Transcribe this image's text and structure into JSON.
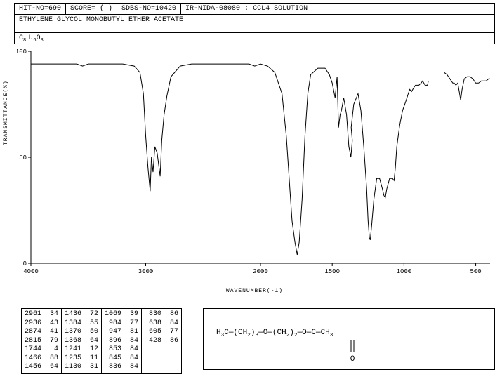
{
  "header": {
    "hit_no": "HIT-NO=690",
    "score": "SCORE=  (  )",
    "sdbs_no": "SDBS-NO=10420",
    "ir_info": "IR-NIDA-08080 : CCL4 SOLUTION"
  },
  "compound_name": "ETHYLENE GLYCOL MONOBUTYL ETHER ACETATE",
  "formula_html": "C<sub>8</sub>H<sub>16</sub>O<sub>3</sub>",
  "chart": {
    "type": "line",
    "ylabel": "TRANSMITTANCE(%)",
    "xlabel": "WAVENUMBER(-1)",
    "xlim": [
      4000,
      400
    ],
    "ylim": [
      0,
      100
    ],
    "yticks": [
      0,
      50,
      100
    ],
    "xticks": [
      4000,
      3000,
      2000,
      1500,
      1000,
      500
    ],
    "plot_bg": "#ffffff",
    "line_color": "#000000",
    "line_width": 1,
    "spectrum": [
      [
        4000,
        94
      ],
      [
        3800,
        94
      ],
      [
        3600,
        94
      ],
      [
        3550,
        93
      ],
      [
        3500,
        94
      ],
      [
        3400,
        94
      ],
      [
        3200,
        94
      ],
      [
        3100,
        93
      ],
      [
        3050,
        90
      ],
      [
        3020,
        80
      ],
      [
        3000,
        60
      ],
      [
        2980,
        45
      ],
      [
        2961,
        34
      ],
      [
        2950,
        50
      ],
      [
        2936,
        43
      ],
      [
        2920,
        55
      ],
      [
        2900,
        52
      ],
      [
        2874,
        41
      ],
      [
        2860,
        58
      ],
      [
        2840,
        70
      ],
      [
        2815,
        79
      ],
      [
        2780,
        88
      ],
      [
        2700,
        93
      ],
      [
        2600,
        94
      ],
      [
        2500,
        94
      ],
      [
        2400,
        94
      ],
      [
        2300,
        94
      ],
      [
        2200,
        94
      ],
      [
        2100,
        94
      ],
      [
        2050,
        93
      ],
      [
        2000,
        94
      ],
      [
        1950,
        93
      ],
      [
        1900,
        90
      ],
      [
        1850,
        80
      ],
      [
        1820,
        60
      ],
      [
        1800,
        40
      ],
      [
        1780,
        20
      ],
      [
        1760,
        10
      ],
      [
        1744,
        4
      ],
      [
        1730,
        10
      ],
      [
        1710,
        30
      ],
      [
        1690,
        60
      ],
      [
        1670,
        80
      ],
      [
        1650,
        89
      ],
      [
        1600,
        92
      ],
      [
        1550,
        92
      ],
      [
        1520,
        89
      ],
      [
        1500,
        85
      ],
      [
        1480,
        78
      ],
      [
        1466,
        88
      ],
      [
        1456,
        64
      ],
      [
        1445,
        70
      ],
      [
        1436,
        72
      ],
      [
        1420,
        78
      ],
      [
        1400,
        70
      ],
      [
        1384,
        55
      ],
      [
        1375,
        52
      ],
      [
        1370,
        50
      ],
      [
        1360,
        58
      ],
      [
        1368,
        64
      ],
      [
        1350,
        75
      ],
      [
        1320,
        80
      ],
      [
        1300,
        72
      ],
      [
        1280,
        55
      ],
      [
        1260,
        35
      ],
      [
        1250,
        20
      ],
      [
        1241,
        12
      ],
      [
        1235,
        11
      ],
      [
        1225,
        18
      ],
      [
        1210,
        30
      ],
      [
        1190,
        40
      ],
      [
        1170,
        40
      ],
      [
        1150,
        35
      ],
      [
        1140,
        32
      ],
      [
        1130,
        31
      ],
      [
        1120,
        35
      ],
      [
        1100,
        40
      ],
      [
        1080,
        40
      ],
      [
        1069,
        39
      ],
      [
        1060,
        45
      ],
      [
        1050,
        55
      ],
      [
        1030,
        65
      ],
      [
        1010,
        72
      ],
      [
        984,
        77
      ],
      [
        970,
        80
      ],
      [
        960,
        82
      ],
      [
        947,
        81
      ],
      [
        930,
        83
      ],
      [
        920,
        84
      ],
      [
        910,
        84
      ],
      [
        896,
        84
      ],
      [
        880,
        85
      ],
      [
        870,
        86
      ],
      [
        853,
        84
      ],
      [
        845,
        84
      ],
      [
        836,
        84
      ],
      [
        830,
        86
      ],
      [
        820,
        90
      ],
      [
        810,
        92
      ],
      [
        800,
        92
      ],
      [
        790,
        90
      ],
      [
        780,
        89
      ],
      [
        770,
        90
      ],
      [
        760,
        91
      ],
      [
        750,
        92
      ],
      [
        740,
        91
      ],
      [
        720,
        90
      ],
      [
        700,
        89
      ],
      [
        680,
        87
      ],
      [
        660,
        85
      ],
      [
        650,
        85
      ],
      [
        638,
        84
      ],
      [
        625,
        85
      ],
      [
        605,
        77
      ],
      [
        595,
        82
      ],
      [
        580,
        87
      ],
      [
        560,
        88
      ],
      [
        540,
        88
      ],
      [
        520,
        87
      ],
      [
        500,
        85
      ],
      [
        480,
        85
      ],
      [
        460,
        86
      ],
      [
        440,
        86
      ],
      [
        428,
        86
      ],
      [
        410,
        87
      ],
      [
        400,
        87
      ]
    ]
  },
  "peak_table": {
    "columns": [
      [
        [
          2961,
          34
        ],
        [
          2936,
          43
        ],
        [
          2874,
          41
        ],
        [
          2815,
          79
        ],
        [
          1744,
          4
        ],
        [
          1466,
          88
        ],
        [
          1456,
          64
        ]
      ],
      [
        [
          1436,
          72
        ],
        [
          1384,
          55
        ],
        [
          1370,
          50
        ],
        [
          1368,
          64
        ],
        [
          1241,
          12
        ],
        [
          1235,
          11
        ],
        [
          1130,
          31
        ]
      ],
      [
        [
          1069,
          39
        ],
        [
          984,
          77
        ],
        [
          947,
          81
        ],
        [
          896,
          84
        ],
        [
          853,
          84
        ],
        [
          845,
          84
        ],
        [
          836,
          84
        ]
      ],
      [
        [
          830,
          86
        ],
        [
          638,
          84
        ],
        [
          605,
          77
        ],
        [
          428,
          86
        ]
      ]
    ]
  },
  "structure": {
    "text_html": "H<sub>3</sub>C—(CH<sub>2</sub>)<sub>3</sub>—O—(CH<sub>2</sub>)<sub>2</sub>—O—C—CH<sub>3</sub>"
  }
}
